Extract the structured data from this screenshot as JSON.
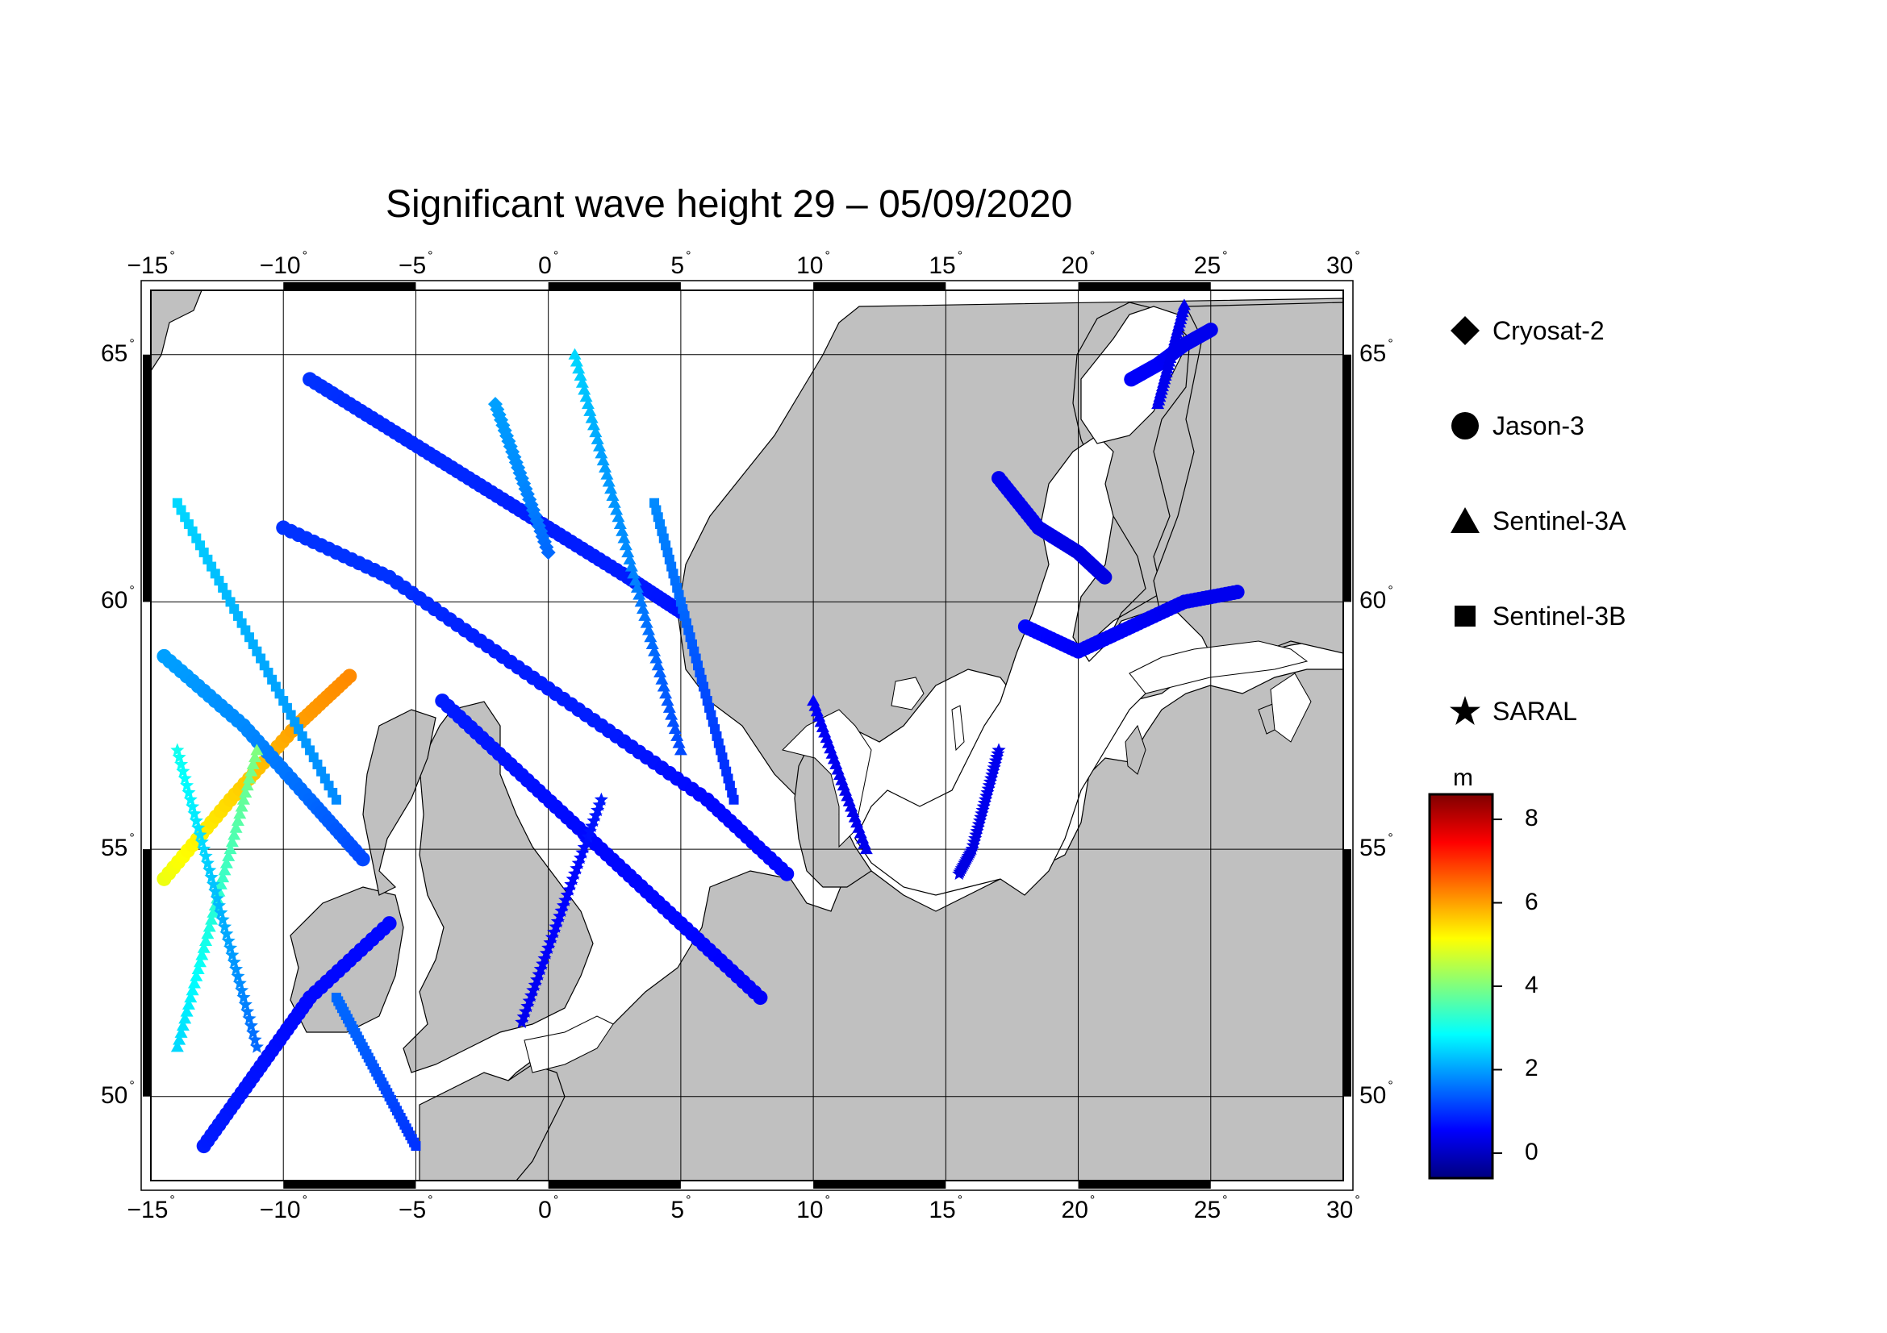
{
  "title": "Significant wave height 29 – 05/09/2020",
  "map": {
    "lon_range": [
      -15,
      30
    ],
    "lat_range": [
      48.3,
      66.3
    ],
    "lon_ticks": [
      "−15",
      "−10",
      "−5",
      "0",
      "5",
      "10",
      "15",
      "20",
      "25",
      "30"
    ],
    "lat_ticks": [
      "65",
      "60",
      "55",
      "50"
    ],
    "degree_symbol": "°",
    "land_color": "#c0c0c0",
    "sea_color": "#ffffff"
  },
  "legend": {
    "items": [
      {
        "label": "Cryosat-2",
        "icon": "diamond-icon"
      },
      {
        "label": "Jason-3",
        "icon": "circle-icon"
      },
      {
        "label": "Sentinel-3A",
        "icon": "triangle-icon"
      },
      {
        "label": "Sentinel-3B",
        "icon": "square-icon"
      },
      {
        "label": "SARAL",
        "icon": "star-icon"
      }
    ]
  },
  "colorbar": {
    "unit": "m",
    "ticks": [
      "8",
      "6",
      "4",
      "2",
      "0"
    ],
    "range": [
      -0.6,
      8.6
    ],
    "colormap": [
      "#00007f",
      "#0000ff",
      "#007fff",
      "#00ffff",
      "#7fff7f",
      "#ffff00",
      "#ff7f00",
      "#ff0000",
      "#7f0000"
    ]
  },
  "chart_data": {
    "type": "scatter",
    "title": "Significant wave height 29 – 05/09/2020",
    "xlabel": "",
    "ylabel": "",
    "xlim": [
      -15,
      30
    ],
    "ylim": [
      48.3,
      66.3
    ],
    "color_value": "significant wave height (m)",
    "series": [
      {
        "name": "Jason-3",
        "marker": "circle",
        "tracks": [
          {
            "lon": [
              -14.5,
              -12,
              -9.5,
              -7.5
            ],
            "lat": [
              54.4,
              56.0,
              57.5,
              58.5
            ],
            "hs": [
              5.0,
              5.5,
              6.0,
              6.2
            ]
          },
          {
            "lon": [
              -14.5,
              -11.5,
              -9,
              -7
            ],
            "lat": [
              58.9,
              57.5,
              56.0,
              54.8
            ],
            "hs": [
              2.0,
              1.8,
              1.5,
              1.2
            ]
          },
          {
            "lon": [
              -10,
              -6,
              -2,
              2,
              6,
              9
            ],
            "lat": [
              61.5,
              60.5,
              59.0,
              57.5,
              56.0,
              54.5
            ],
            "hs": [
              1.0,
              1.0,
              0.8,
              0.8,
              0.6,
              0.6
            ]
          },
          {
            "lon": [
              -13,
              -11,
              -9,
              -6
            ],
            "lat": [
              49.0,
              50.5,
              52.0,
              53.5
            ],
            "hs": [
              0.8,
              0.7,
              0.6,
              0.6
            ]
          },
          {
            "lon": [
              -9,
              -6,
              -3,
              0,
              3,
              5
            ],
            "lat": [
              64.5,
              63.5,
              62.5,
              61.5,
              60.5,
              59.8
            ],
            "hs": [
              1.0,
              0.9,
              0.9,
              0.8,
              0.8,
              0.7
            ]
          },
          {
            "lon": [
              -4,
              -1,
              2,
              5,
              8
            ],
            "lat": [
              58.0,
              56.5,
              55.0,
              53.5,
              52.0
            ],
            "hs": [
              0.8,
              0.7,
              0.6,
              0.6,
              0.5
            ]
          },
          {
            "lon": [
              18,
              20,
              22,
              24,
              26
            ],
            "lat": [
              59.5,
              59.0,
              59.5,
              60.0,
              60.2
            ],
            "hs": [
              0.6,
              0.5,
              0.5,
              0.4,
              0.4
            ]
          },
          {
            "lon": [
              17,
              18.5,
              20,
              21
            ],
            "lat": [
              62.5,
              61.5,
              61.0,
              60.5
            ],
            "hs": [
              0.4,
              0.4,
              0.3,
              0.3
            ]
          },
          {
            "lon": [
              22,
              23,
              24,
              25
            ],
            "lat": [
              64.5,
              64.8,
              65.2,
              65.5
            ],
            "hs": [
              0.5,
              0.5,
              0.4,
              0.4
            ]
          }
        ]
      },
      {
        "name": "Sentinel-3A",
        "marker": "triangle",
        "tracks": [
          {
            "lon": [
              -14,
              -13,
              -12,
              -11
            ],
            "lat": [
              51.0,
              53.0,
              55.0,
              57.0
            ],
            "hs": [
              2.5,
              3.0,
              3.5,
              4.0
            ]
          },
          {
            "lon": [
              1,
              2,
              3,
              4,
              5
            ],
            "lat": [
              65.0,
              63.0,
              61.0,
              59.0,
              57.0
            ],
            "hs": [
              2.5,
              2.0,
              1.8,
              1.5,
              1.2
            ]
          },
          {
            "lon": [
              10,
              11,
              12
            ],
            "lat": [
              58.0,
              56.5,
              55.0
            ],
            "hs": [
              0.5,
              0.4,
              0.4
            ]
          },
          {
            "lon": [
              24,
              23.5,
              23
            ],
            "lat": [
              66.0,
              65.0,
              64.0
            ],
            "hs": [
              0.4,
              0.4,
              0.4
            ]
          }
        ]
      },
      {
        "name": "Sentinel-3B",
        "marker": "square",
        "tracks": [
          {
            "lon": [
              -14,
              -12,
              -10,
              -8
            ],
            "lat": [
              62.0,
              60.0,
              58.0,
              56.0
            ],
            "hs": [
              2.5,
              2.2,
              2.0,
              1.8
            ]
          },
          {
            "lon": [
              -8,
              -7,
              -6,
              -5
            ],
            "lat": [
              52.0,
              51.0,
              50.0,
              49.0
            ],
            "hs": [
              1.5,
              1.4,
              1.2,
              1.0
            ]
          },
          {
            "lon": [
              4,
              5,
              6,
              7
            ],
            "lat": [
              62.0,
              60.0,
              58.0,
              56.0
            ],
            "hs": [
              1.8,
              1.5,
              1.2,
              0.9
            ]
          }
        ]
      },
      {
        "name": "SARAL",
        "marker": "star",
        "tracks": [
          {
            "lon": [
              -14,
              -13,
              -12,
              -11
            ],
            "lat": [
              57.0,
              55.0,
              53.0,
              51.0
            ],
            "hs": [
              3.0,
              2.5,
              2.0,
              1.5
            ]
          },
          {
            "lon": [
              2,
              1,
              0,
              -1
            ],
            "lat": [
              56.0,
              54.5,
              53.0,
              51.5
            ],
            "hs": [
              0.8,
              0.6,
              0.5,
              0.4
            ]
          },
          {
            "lon": [
              17,
              16.5,
              16,
              15.5
            ],
            "lat": [
              57.0,
              56.0,
              55.0,
              54.5
            ],
            "hs": [
              0.4,
              0.4,
              0.3,
              0.3
            ]
          }
        ]
      },
      {
        "name": "Cryosat-2",
        "marker": "diamond",
        "tracks": [
          {
            "lon": [
              -2,
              -1,
              0
            ],
            "lat": [
              64.0,
              62.5,
              61.0
            ],
            "hs": [
              2.0,
              1.8,
              1.5
            ]
          }
        ]
      }
    ]
  }
}
